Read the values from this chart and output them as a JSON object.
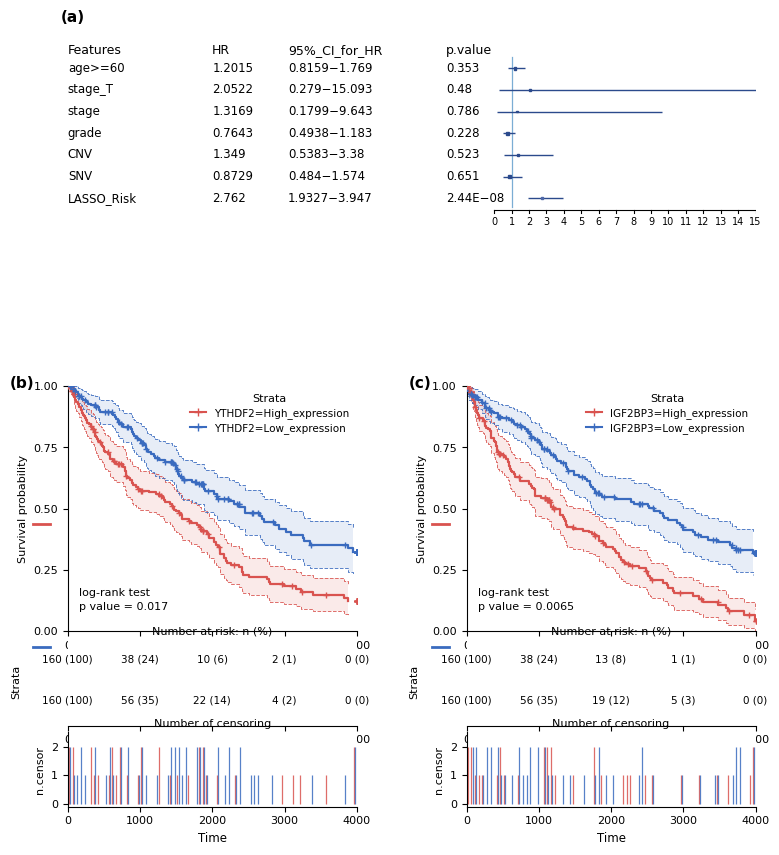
{
  "forest": {
    "features": [
      "age>=60",
      "stage_T",
      "stage",
      "grade",
      "CNV",
      "SNV",
      "LASSO_Risk"
    ],
    "hr": [
      1.2015,
      2.0522,
      1.3169,
      0.7643,
      1.349,
      0.8729,
      2.762
    ],
    "ci_low": [
      0.8159,
      0.279,
      0.1799,
      0.4938,
      0.5383,
      0.484,
      1.9327
    ],
    "ci_high": [
      1.769,
      15.093,
      9.643,
      1.183,
      3.38,
      1.574,
      3.947
    ],
    "ci_str": [
      "0.8159−1.769",
      "0.279−15.093",
      "0.1799−9.643",
      "0.4938−1.183",
      "0.5383−3.38",
      "0.484−1.574",
      "1.9327−3.947"
    ],
    "pvalue": [
      "0.353",
      "0.48",
      "0.786",
      "0.228",
      "0.523",
      "0.651",
      "2.44E−08"
    ],
    "xticks": [
      0,
      1,
      2,
      3,
      4,
      5,
      6,
      7,
      8,
      9,
      10,
      11,
      12,
      13,
      14,
      15
    ],
    "vline_x": 1,
    "box_color": "#2b4a8c",
    "line_color": "#2b4a8c",
    "lasso_box_color": "#4e68a8",
    "box_sizes": [
      0.32,
      0.18,
      0.18,
      0.38,
      0.28,
      0.32,
      0.28
    ]
  },
  "km_b": {
    "high_label": "YTHDF2=High_expression",
    "low_label": "YTHDF2=Low_expression",
    "pvalue_text": "log-rank test\np value = 0.017",
    "red_color": "#d9534f",
    "blue_color": "#3a6bbf",
    "xlim": [
      0,
      4000
    ],
    "ylim": [
      0.0,
      1.0
    ],
    "xticks": [
      0,
      1000,
      2000,
      3000,
      4000
    ],
    "yticks": [
      0.0,
      0.25,
      0.5,
      0.75,
      1.0
    ],
    "risk_red": [
      "160 (100)",
      "38 (24)",
      "10 (6)",
      "2 (1)",
      "0 (0)"
    ],
    "risk_blue": [
      "160 (100)",
      "56 (35)",
      "22 (14)",
      "4 (2)",
      "0 (0)"
    ],
    "risk_times": [
      0,
      1000,
      2000,
      3000,
      4000
    ],
    "high_lam": 0.00055,
    "low_lam": 0.00028,
    "high_seed": 101,
    "low_seed": 202
  },
  "km_c": {
    "high_label": "IGF2BP3=High_expression",
    "low_label": "IGF2BP3=Low_expression",
    "pvalue_text": "log-rank test\np value = 0.0065",
    "red_color": "#d9534f",
    "blue_color": "#3a6bbf",
    "xlim": [
      0,
      4000
    ],
    "ylim": [
      0.0,
      1.0
    ],
    "xticks": [
      0,
      1000,
      2000,
      3000,
      4000
    ],
    "yticks": [
      0.0,
      0.25,
      0.5,
      0.75,
      1.0
    ],
    "risk_red": [
      "160 (100)",
      "38 (24)",
      "13 (8)",
      "1 (1)",
      "0 (0)"
    ],
    "risk_blue": [
      "160 (100)",
      "56 (35)",
      "19 (12)",
      "5 (3)",
      "0 (0)"
    ],
    "risk_times": [
      0,
      1000,
      2000,
      3000,
      4000
    ],
    "high_lam": 0.0006,
    "low_lam": 0.00025,
    "high_seed": 303,
    "low_seed": 404
  }
}
